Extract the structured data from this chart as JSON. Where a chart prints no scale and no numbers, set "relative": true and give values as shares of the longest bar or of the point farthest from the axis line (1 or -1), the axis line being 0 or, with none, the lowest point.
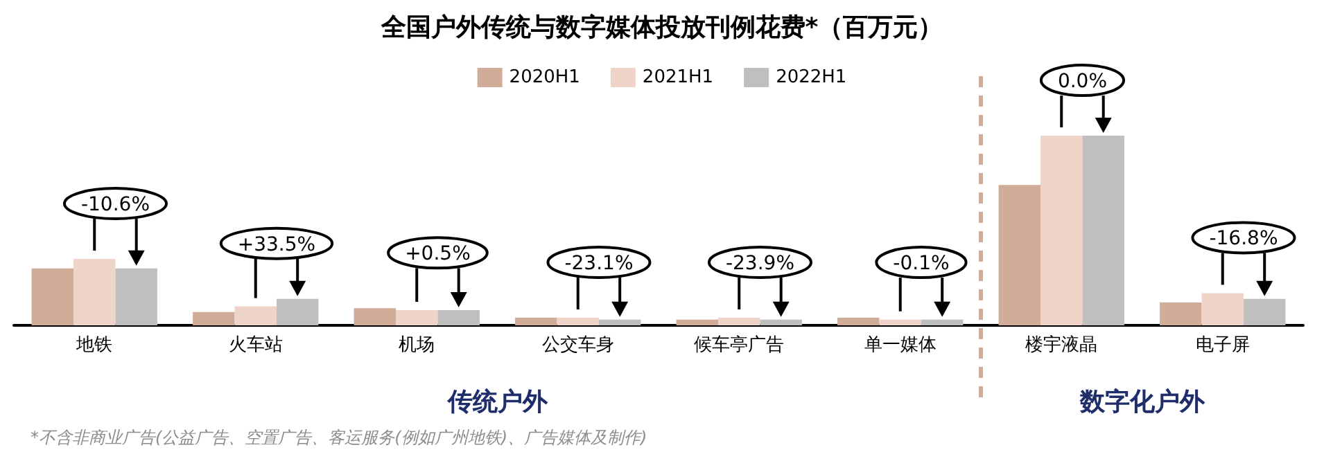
{
  "chart_data": {
    "type": "bar",
    "title": "全国户外传统与数字媒体投放刊例花费*（百万元）",
    "relative": true,
    "categories": [
      "地铁",
      "火车站",
      "机场",
      "公交车身",
      "候车亭广告",
      "单一媒体",
      "楼宇液晶",
      "电子屏"
    ],
    "series": [
      {
        "name": "2020H1",
        "color": "#d1ad99",
        "values": [
          0.3,
          0.07,
          0.09,
          0.04,
          0.03,
          0.04,
          0.74,
          0.12
        ]
      },
      {
        "name": "2021H1",
        "color": "#efd5c9",
        "values": [
          0.35,
          0.1,
          0.08,
          0.04,
          0.04,
          0.03,
          1,
          0.17
        ]
      },
      {
        "name": "2022H1",
        "color": "#bfbfbf",
        "values": [
          0.3,
          0.14,
          0.08,
          0.03,
          0.03,
          0.03,
          1,
          0.14
        ]
      }
    ],
    "legend": "top",
    "grid": false,
    "annotations": [
      "-10.6%",
      "+33.5%",
      "+0.5%",
      "-23.1%",
      "-23.9%",
      "-0.1%",
      "0.0%",
      "-16.8%",
      "传统户外",
      "数字化户外",
      "*不含非商业广告(公益广告、空置广告、客运服务(例如广州地铁)、广告媒体及制作)"
    ]
  }
}
